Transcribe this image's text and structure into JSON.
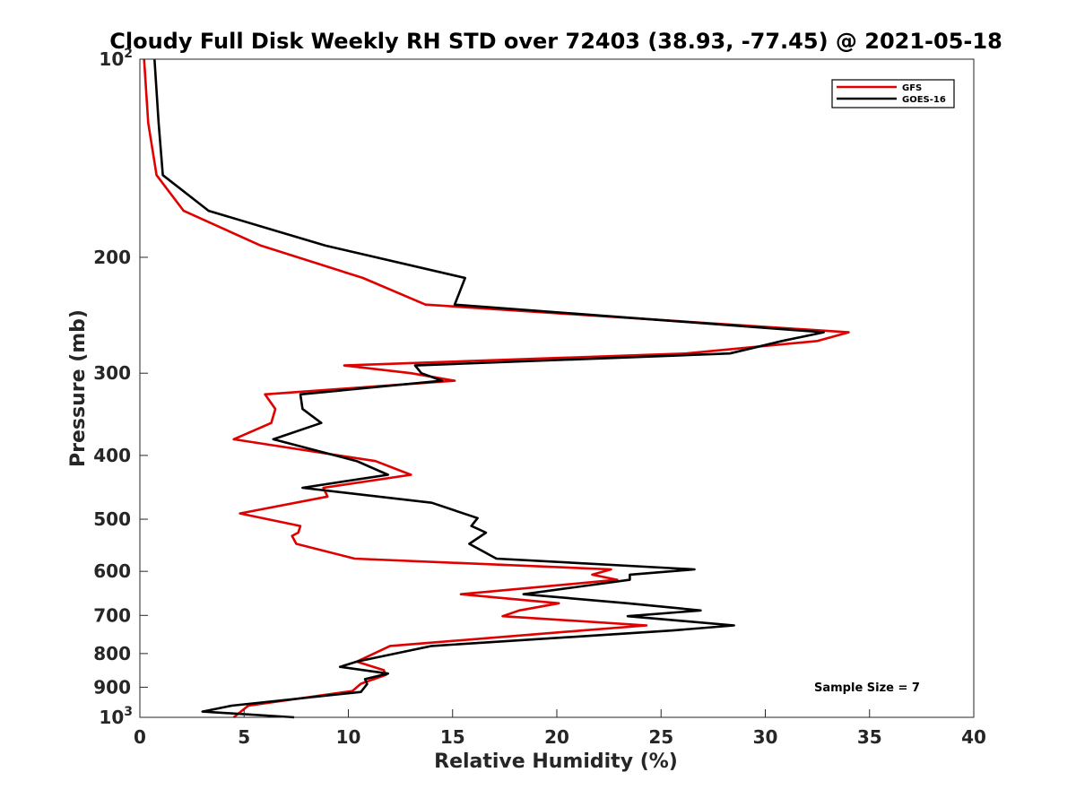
{
  "chart_data": {
    "type": "line",
    "title": "Cloudy Full Disk Weekly RH STD over 72403 (38.93, -77.45) @ 2021-05-18",
    "xlabel": "Relative Humidity (%)",
    "ylabel": "Pressure (mb)",
    "xlim": [
      0,
      40
    ],
    "ylim": [
      100,
      1000
    ],
    "y_scale": "log",
    "y_reversed": true,
    "x_ticks": [
      "0",
      "5",
      "10",
      "15",
      "20",
      "25",
      "30",
      "35",
      "40"
    ],
    "y_ticks": [
      {
        "value": 100,
        "base": "10",
        "exp": "2"
      },
      {
        "value": 200,
        "label": "200"
      },
      {
        "value": 300,
        "label": "300"
      },
      {
        "value": 400,
        "label": "400"
      },
      {
        "value": 500,
        "label": "500"
      },
      {
        "value": 600,
        "label": "600"
      },
      {
        "value": 700,
        "label": "700"
      },
      {
        "value": 800,
        "label": "800"
      },
      {
        "value": 900,
        "label": "900"
      },
      {
        "value": 1000,
        "base": "10",
        "exp": "3"
      }
    ],
    "grid": false,
    "legend_position": "top-right",
    "annotation": "Sample Size = 7",
    "series": [
      {
        "name": "GFS",
        "color": "#e00000",
        "points": [
          [
            0.2,
            100
          ],
          [
            0.4,
            125
          ],
          [
            0.8,
            150
          ],
          [
            2.1,
            170
          ],
          [
            5.8,
            192
          ],
          [
            10.7,
            215
          ],
          [
            13.7,
            236
          ],
          [
            34.0,
            260
          ],
          [
            32.5,
            268
          ],
          [
            26.2,
            280
          ],
          [
            9.8,
            292
          ],
          [
            13.0,
            300
          ],
          [
            15.1,
            308
          ],
          [
            6.0,
            323
          ],
          [
            6.5,
            340
          ],
          [
            6.3,
            357
          ],
          [
            4.5,
            378
          ],
          [
            11.3,
            408
          ],
          [
            13.0,
            428
          ],
          [
            8.8,
            448
          ],
          [
            9.0,
            462
          ],
          [
            4.8,
            490
          ],
          [
            7.7,
            512
          ],
          [
            7.6,
            524
          ],
          [
            7.3,
            530
          ],
          [
            7.5,
            545
          ],
          [
            10.3,
            574
          ],
          [
            22.6,
            596
          ],
          [
            21.7,
            607
          ],
          [
            22.9,
            618
          ],
          [
            15.4,
            650
          ],
          [
            20.1,
            671
          ],
          [
            18.2,
            688
          ],
          [
            17.4,
            702
          ],
          [
            24.3,
            725
          ],
          [
            21.2,
            738
          ],
          [
            12.0,
            779
          ],
          [
            10.4,
            823
          ],
          [
            11.7,
            848
          ],
          [
            11.8,
            862
          ],
          [
            10.6,
            889
          ],
          [
            10.2,
            912
          ],
          [
            5.2,
            960
          ],
          [
            4.5,
            1000
          ]
        ]
      },
      {
        "name": "GOES-16",
        "color": "#000000",
        "points": [
          [
            0.7,
            100
          ],
          [
            0.9,
            125
          ],
          [
            1.1,
            150
          ],
          [
            3.3,
            170
          ],
          [
            8.9,
            192
          ],
          [
            15.6,
            215
          ],
          [
            15.1,
            236
          ],
          [
            32.8,
            260
          ],
          [
            30.8,
            268
          ],
          [
            28.3,
            280
          ],
          [
            13.2,
            292
          ],
          [
            13.5,
            300
          ],
          [
            14.5,
            308
          ],
          [
            7.7,
            323
          ],
          [
            7.8,
            340
          ],
          [
            8.7,
            357
          ],
          [
            6.4,
            378
          ],
          [
            10.4,
            408
          ],
          [
            11.9,
            428
          ],
          [
            7.8,
            448
          ],
          [
            14.0,
            472
          ],
          [
            16.2,
            498
          ],
          [
            15.9,
            512
          ],
          [
            16.6,
            524
          ],
          [
            15.8,
            545
          ],
          [
            17.1,
            574
          ],
          [
            26.6,
            596
          ],
          [
            23.5,
            607
          ],
          [
            23.5,
            618
          ],
          [
            18.4,
            650
          ],
          [
            23.4,
            671
          ],
          [
            26.9,
            688
          ],
          [
            23.4,
            702
          ],
          [
            28.5,
            725
          ],
          [
            25.5,
            738
          ],
          [
            14.0,
            779
          ],
          [
            10.4,
            823
          ],
          [
            9.6,
            838
          ],
          [
            11.9,
            858
          ],
          [
            10.8,
            875
          ],
          [
            10.9,
            890
          ],
          [
            10.6,
            915
          ],
          [
            4.4,
            960
          ],
          [
            3.0,
            980
          ],
          [
            7.4,
            1000
          ]
        ]
      }
    ]
  }
}
